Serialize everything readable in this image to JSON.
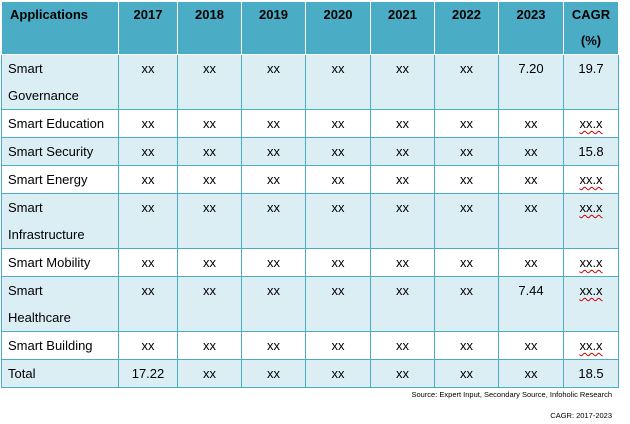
{
  "table": {
    "headers": [
      "Applications",
      "2017",
      "2018",
      "2019",
      "2020",
      "2021",
      "2022",
      "2023",
      "CAGR (%)"
    ],
    "rows": [
      {
        "label": "Smart Governance",
        "values": [
          "xx",
          "xx",
          "xx",
          "xx",
          "xx",
          "xx",
          "7.20",
          "19.7"
        ]
      },
      {
        "label": "Smart Education",
        "values": [
          "xx",
          "xx",
          "xx",
          "xx",
          "xx",
          "xx",
          "xx",
          "xx.x"
        ]
      },
      {
        "label": "Smart Security",
        "values": [
          "xx",
          "xx",
          "xx",
          "xx",
          "xx",
          "xx",
          "xx",
          "15.8"
        ]
      },
      {
        "label": "Smart Energy",
        "values": [
          "xx",
          "xx",
          "xx",
          "xx",
          "xx",
          "xx",
          "xx",
          "xx.x"
        ]
      },
      {
        "label": "Smart Infrastructure",
        "values": [
          "xx",
          "xx",
          "xx",
          "xx",
          "xx",
          "xx",
          "xx",
          "xx.x"
        ]
      },
      {
        "label": "Smart Mobility",
        "values": [
          "xx",
          "xx",
          "xx",
          "xx",
          "xx",
          "xx",
          "xx",
          "xx.x"
        ]
      },
      {
        "label": "Smart Healthcare",
        "values": [
          "xx",
          "xx",
          "xx",
          "xx",
          "xx",
          "xx",
          "7.44",
          "xx.x"
        ]
      },
      {
        "label": "Smart Building",
        "values": [
          "xx",
          "xx",
          "xx",
          "xx",
          "xx",
          "xx",
          "xx",
          "xx.x"
        ]
      },
      {
        "label": "Total",
        "values": [
          "17.22",
          "xx",
          "xx",
          "xx",
          "xx",
          "xx",
          "xx",
          "18.5"
        ]
      }
    ]
  },
  "notes": {
    "source": "Source: Expert Input, Secondary Source, Infoholic Research",
    "cagr_period": "CAGR: 2017-2023"
  },
  "colors": {
    "header_bg": "#4bacc6",
    "band_bg": "#dbeef3",
    "border": "#4bacc6",
    "spellcheck_underline": "#d00000"
  }
}
